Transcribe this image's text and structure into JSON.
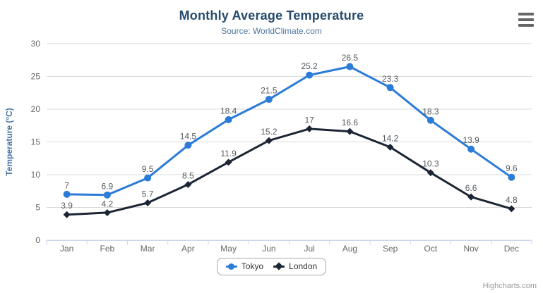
{
  "chart": {
    "title": "Monthly Average Temperature",
    "subtitle": "Source: WorldClimate.com",
    "credits": "Highcharts.com",
    "colors": {
      "title": "#274b6d",
      "subtitle": "#4d759e",
      "yaxis_title": "#4572a7",
      "tick_label": "#666666",
      "data_label": "#565b60",
      "grid": "#d8d8d8",
      "axis_line": "#ccd6eb",
      "legend_text": "#333333",
      "legend_border": "#a8a8a8",
      "credits_text": "#999999",
      "menu_icon": "#666666",
      "background": "#ffffff"
    }
  },
  "chart_data": {
    "type": "line",
    "title": "Monthly Average Temperature",
    "subtitle": "Source: WorldClimate.com",
    "xlabel": "",
    "ylabel": "Temperature (°C)",
    "ylim": [
      0,
      30
    ],
    "ytick_step": 5,
    "yticks": [
      0,
      5,
      10,
      15,
      20,
      25,
      30
    ],
    "grid": true,
    "legend_position": "bottom",
    "data_labels": true,
    "categories": [
      "Jan",
      "Feb",
      "Mar",
      "Apr",
      "May",
      "Jun",
      "Jul",
      "Aug",
      "Sep",
      "Oct",
      "Nov",
      "Dec"
    ],
    "series": [
      {
        "name": "Tokyo",
        "color": "#2b7bd8",
        "marker": "circle",
        "values": [
          7,
          6.9,
          9.5,
          14.5,
          18.4,
          21.5,
          25.2,
          26.5,
          23.3,
          18.3,
          13.9,
          9.6
        ]
      },
      {
        "name": "London",
        "color": "#1b2534",
        "marker": "diamond",
        "values": [
          3.9,
          4.2,
          5.7,
          8.5,
          11.9,
          15.2,
          17,
          16.6,
          14.2,
          10.3,
          6.6,
          4.8
        ]
      }
    ]
  }
}
